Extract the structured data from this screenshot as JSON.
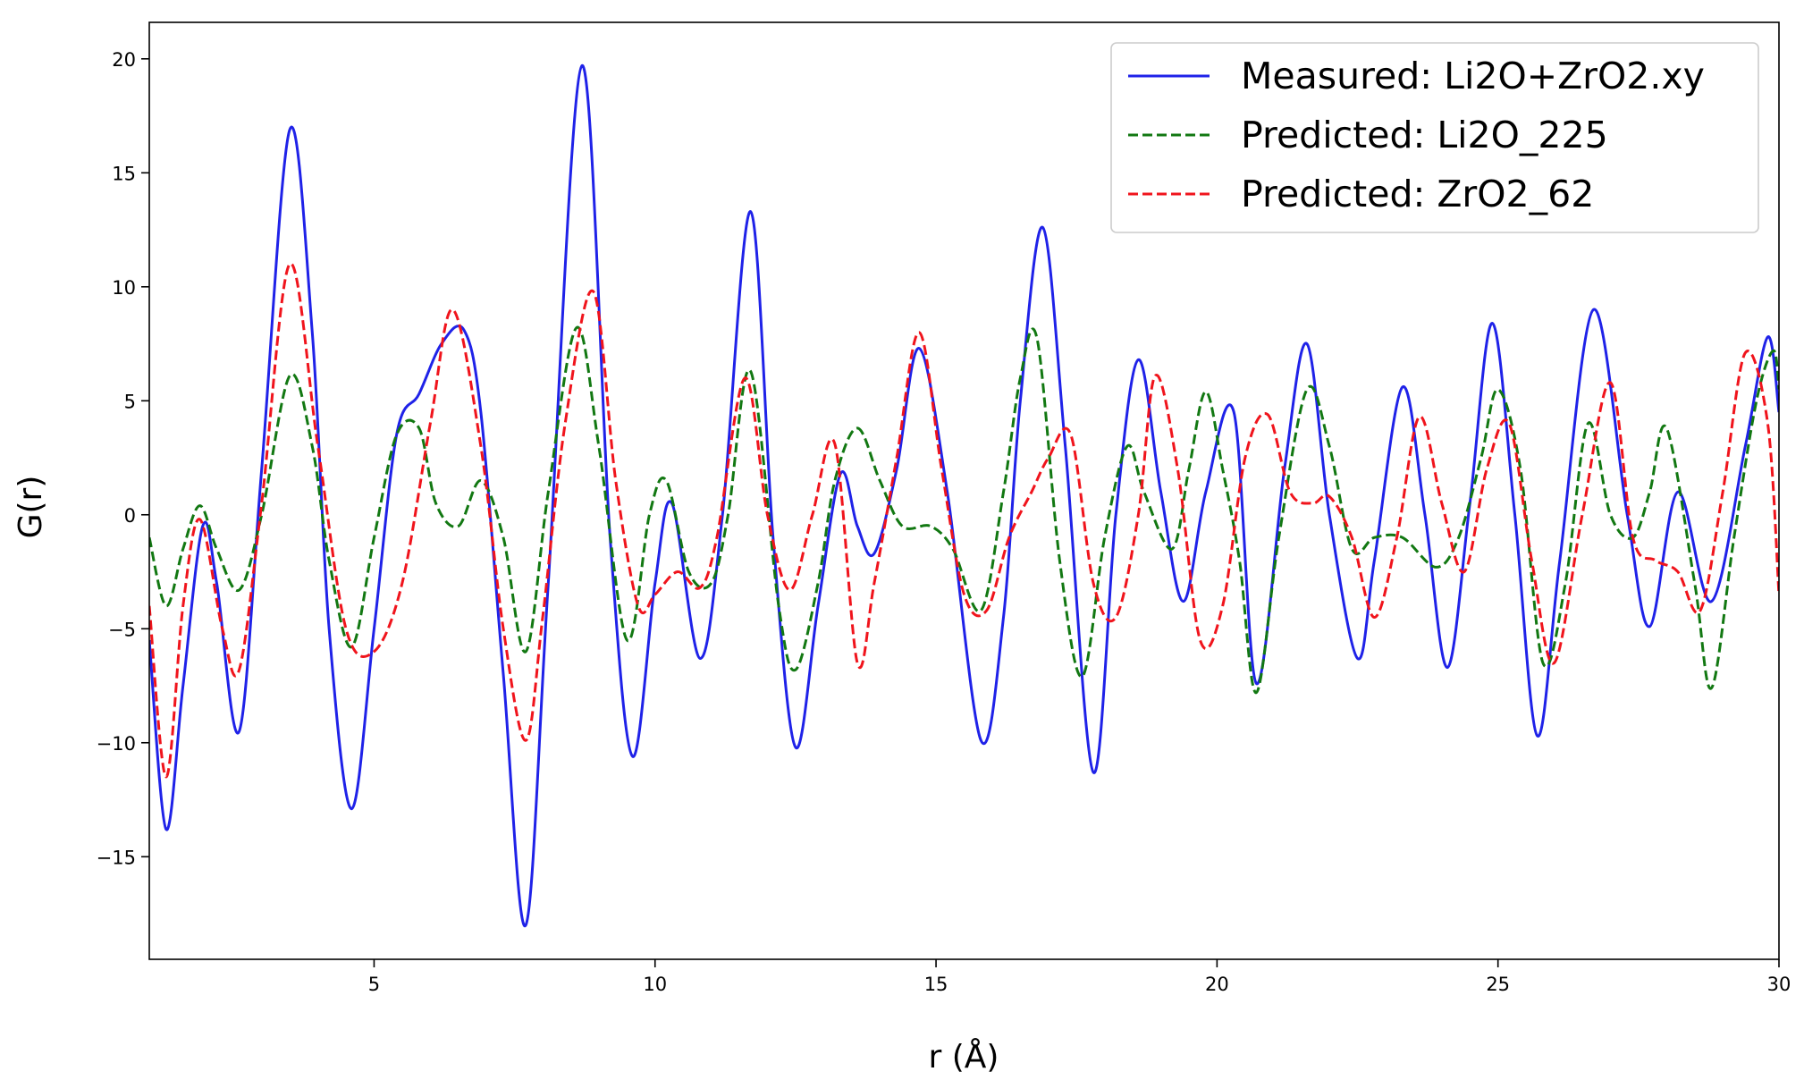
{
  "chart_data": {
    "type": "line",
    "title": "",
    "xlabel": "r (Å)",
    "ylabel": "G(r)",
    "xlim": [
      1.0,
      30.0
    ],
    "ylim": [
      -19.5,
      21.6
    ],
    "xticks": [
      5,
      10,
      15,
      20,
      25,
      30
    ],
    "yticks": [
      -15,
      -10,
      -5,
      0,
      5,
      10,
      15,
      20
    ],
    "xtick_labels": [
      "5",
      "10",
      "15",
      "20",
      "25",
      "30"
    ],
    "ytick_labels": [
      "−15",
      "−10",
      "−5",
      "0",
      "5",
      "10",
      "15",
      "20"
    ],
    "grid": false,
    "legend_position": "top-right",
    "colors": {
      "measured": "#1f22e8",
      "li2o": "#127812",
      "zro2": "#f0141c"
    },
    "series": [
      {
        "name": "Measured: Li2O+ZrO2.xy",
        "style": "solid",
        "color": "#1f22e8",
        "x": [
          1.0,
          1.3,
          1.6,
          1.95,
          2.2,
          2.6,
          3.0,
          3.5,
          3.9,
          4.2,
          4.6,
          5.0,
          5.4,
          5.8,
          6.2,
          6.6,
          6.9,
          7.3,
          7.7,
          8.1,
          8.7,
          9.2,
          9.6,
          10.0,
          10.3,
          10.8,
          11.2,
          11.7,
          12.1,
          12.5,
          12.9,
          13.3,
          13.6,
          13.9,
          14.3,
          14.7,
          15.2,
          15.8,
          16.2,
          16.5,
          16.9,
          17.3,
          17.8,
          18.2,
          18.6,
          19.0,
          19.4,
          19.8,
          20.3,
          20.7,
          21.2,
          21.6,
          22.0,
          22.5,
          22.8,
          23.3,
          23.7,
          24.1,
          24.5,
          24.9,
          25.3,
          25.7,
          26.1,
          26.7,
          27.3,
          27.7,
          28.2,
          28.8,
          29.4,
          29.8,
          30.0
        ],
        "y": [
          -5.5,
          -13.8,
          -7.5,
          -0.5,
          -3.0,
          -9.5,
          2.0,
          16.9,
          8.0,
          -5.0,
          -12.9,
          -5.0,
          3.5,
          5.3,
          7.5,
          8.1,
          4.5,
          -7.0,
          -18.0,
          -3.0,
          19.7,
          -1.0,
          -10.6,
          -3.0,
          0.5,
          -6.3,
          0.0,
          13.3,
          -1.0,
          -10.2,
          -4.0,
          1.8,
          -0.5,
          -1.7,
          2.0,
          7.3,
          1.0,
          -9.9,
          -4.5,
          5.0,
          12.6,
          3.0,
          -11.3,
          0.0,
          6.8,
          1.0,
          -3.8,
          1.0,
          4.5,
          -7.4,
          2.0,
          7.5,
          0.0,
          -6.3,
          -2.0,
          5.6,
          0.0,
          -6.7,
          0.5,
          8.4,
          0.0,
          -9.7,
          -2.0,
          9.0,
          0.0,
          -4.9,
          1.0,
          -3.8,
          3.0,
          7.8,
          4.5
        ]
      },
      {
        "name": "Predicted: Li2O_225",
        "style": "dashed",
        "color": "#127812",
        "x": [
          1.0,
          1.3,
          1.6,
          1.9,
          2.2,
          2.6,
          3.0,
          3.5,
          3.9,
          4.2,
          4.6,
          5.0,
          5.4,
          5.8,
          6.1,
          6.5,
          6.9,
          7.3,
          7.7,
          8.1,
          8.6,
          9.0,
          9.5,
          9.9,
          10.2,
          10.6,
          11.0,
          11.3,
          11.7,
          12.2,
          12.5,
          12.9,
          13.2,
          13.6,
          14.0,
          14.4,
          14.9,
          15.3,
          15.8,
          16.2,
          16.5,
          16.8,
          17.2,
          17.6,
          18.0,
          18.4,
          18.7,
          19.2,
          19.5,
          19.8,
          20.1,
          20.4,
          20.7,
          21.1,
          21.6,
          22.0,
          22.4,
          22.8,
          23.3,
          23.9,
          24.3,
          24.7,
          25.0,
          25.4,
          25.8,
          26.2,
          26.6,
          27.0,
          27.4,
          27.7,
          28.0,
          28.5,
          28.8,
          29.2,
          29.6,
          29.9,
          30.0
        ],
        "y": [
          -1.0,
          -4.0,
          -1.5,
          0.4,
          -1.5,
          -3.3,
          0.0,
          6.1,
          3.0,
          -2.0,
          -5.8,
          -1.0,
          3.5,
          3.8,
          0.5,
          -0.5,
          1.5,
          -1.0,
          -6.0,
          1.0,
          8.2,
          3.0,
          -5.5,
          0.0,
          1.5,
          -2.5,
          -3.0,
          0.0,
          6.3,
          -4.0,
          -6.8,
          -3.0,
          1.5,
          3.8,
          1.5,
          -0.5,
          -0.5,
          -1.5,
          -4.2,
          1.0,
          6.0,
          7.7,
          -2.0,
          -7.1,
          -1.0,
          3.0,
          1.0,
          -1.5,
          2.0,
          5.4,
          2.0,
          -2.0,
          -7.8,
          -1.0,
          5.5,
          3.0,
          -1.5,
          -1.0,
          -1.0,
          -2.3,
          -1.0,
          2.5,
          5.5,
          2.0,
          -6.5,
          -3.0,
          4.0,
          0.0,
          -1.0,
          1.0,
          3.8,
          -3.0,
          -7.6,
          -1.0,
          5.0,
          7.2,
          5.5
        ]
      },
      {
        "name": "Predicted: ZrO2_62",
        "style": "dashed",
        "color": "#f0141c",
        "x": [
          1.0,
          1.3,
          1.6,
          1.9,
          2.3,
          2.6,
          3.0,
          3.5,
          4.0,
          4.5,
          5.0,
          5.5,
          6.0,
          6.4,
          6.9,
          7.3,
          7.7,
          8.0,
          8.4,
          8.9,
          9.3,
          9.7,
          10.0,
          10.4,
          10.8,
          11.1,
          11.6,
          12.0,
          12.4,
          12.8,
          13.2,
          13.6,
          13.9,
          14.3,
          14.7,
          15.1,
          15.5,
          15.9,
          16.3,
          16.7,
          17.0,
          17.4,
          17.8,
          18.2,
          18.6,
          18.9,
          19.3,
          19.7,
          20.1,
          20.5,
          20.9,
          21.3,
          21.7,
          22.0,
          22.4,
          22.8,
          23.2,
          23.6,
          24.0,
          24.4,
          24.8,
          25.2,
          25.6,
          26.0,
          26.5,
          27.0,
          27.4,
          27.8,
          28.2,
          28.6,
          29.0,
          29.4,
          29.8,
          30.0
        ],
        "y": [
          -4.0,
          -11.5,
          -4.0,
          -0.2,
          -5.0,
          -6.8,
          0.5,
          11.0,
          3.0,
          -5.0,
          -6.0,
          -3.0,
          4.0,
          9.0,
          3.0,
          -5.0,
          -9.9,
          -4.5,
          4.0,
          9.8,
          1.5,
          -4.0,
          -3.5,
          -2.5,
          -3.2,
          -1.0,
          6.0,
          0.0,
          -3.3,
          0.0,
          3.1,
          -6.5,
          -3.0,
          2.5,
          8.0,
          2.0,
          -3.5,
          -4.2,
          -1.0,
          1.0,
          2.5,
          3.5,
          -3.0,
          -4.5,
          0.0,
          6.1,
          2.0,
          -5.5,
          -4.0,
          2.5,
          4.4,
          1.0,
          0.5,
          0.8,
          -1.0,
          -4.5,
          -1.0,
          4.3,
          0.5,
          -2.5,
          2.0,
          4.0,
          -2.0,
          -6.5,
          0.0,
          5.8,
          -1.0,
          -2.0,
          -2.5,
          -4.2,
          1.0,
          7.1,
          4.0,
          -3.5
        ]
      }
    ]
  }
}
